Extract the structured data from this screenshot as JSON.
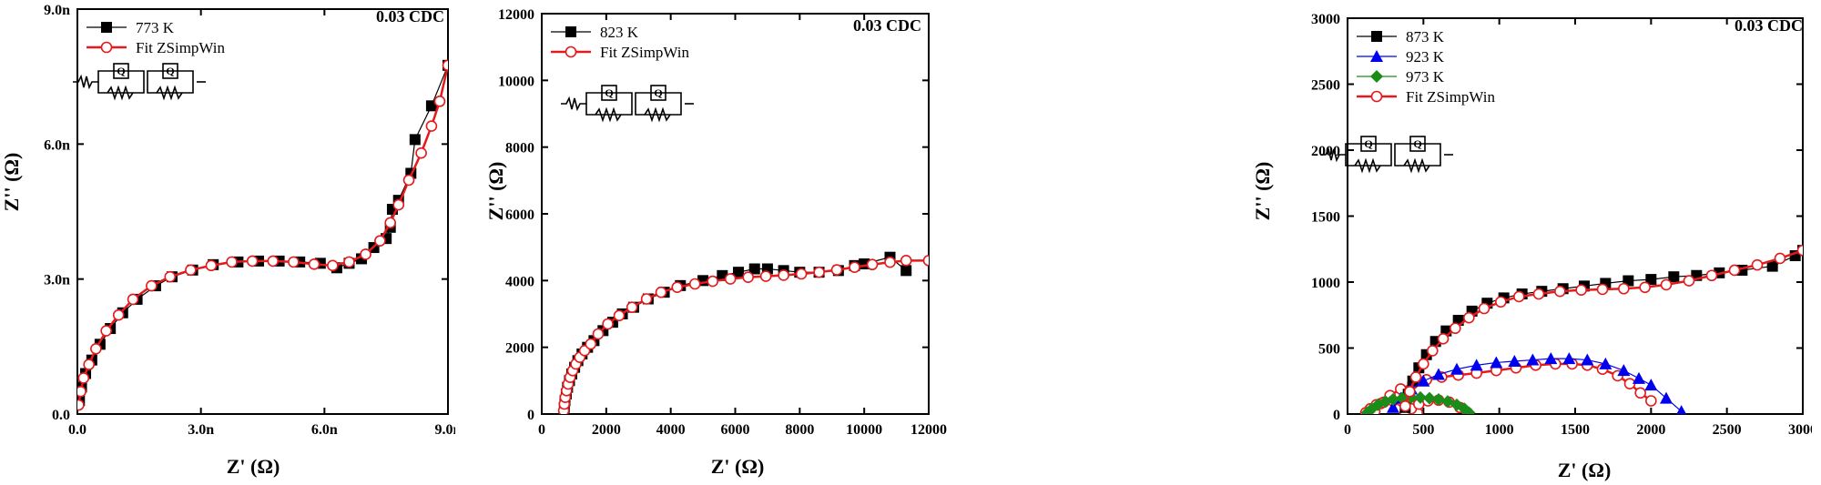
{
  "chart_data": [
    {
      "type": "scatter",
      "annotation": "0.03 CDC",
      "xlabel": "Z' (Ω)",
      "ylabel": "Z'' (Ω)",
      "xlim": [
        0,
        9
      ],
      "ylim": [
        0,
        9
      ],
      "xticks": [
        0,
        3,
        6,
        9
      ],
      "xtick_labels": [
        "0.0",
        "3.0n",
        "6.0n",
        "9.0n"
      ],
      "yticks": [
        0,
        3,
        6,
        9
      ],
      "ytick_labels": [
        "0.0",
        "3.0n",
        "6.0n",
        "9.0n"
      ],
      "legend_position": "top-left",
      "series": [
        {
          "name": "773 K",
          "marker": "square",
          "color": "#000000",
          "x": [
            0.05,
            0.1,
            0.2,
            0.35,
            0.55,
            0.8,
            1.1,
            1.45,
            1.9,
            2.3,
            2.8,
            3.3,
            3.9,
            4.4,
            4.9,
            5.4,
            5.9,
            6.3,
            6.6,
            6.9,
            7.2,
            7.5,
            7.6,
            7.65,
            7.8,
            8.1,
            8.2,
            8.6,
            9.0
          ],
          "y": [
            0.3,
            0.6,
            0.9,
            1.2,
            1.55,
            1.9,
            2.25,
            2.55,
            2.85,
            3.05,
            3.2,
            3.32,
            3.38,
            3.4,
            3.4,
            3.38,
            3.35,
            3.25,
            3.35,
            3.45,
            3.7,
            3.9,
            4.15,
            4.55,
            4.75,
            5.35,
            6.1,
            6.85,
            7.75
          ]
        },
        {
          "name": "Fit ZSimpWin",
          "marker": "circle-open",
          "color": "#e41a1c",
          "x": [
            0.03,
            0.08,
            0.15,
            0.28,
            0.45,
            0.7,
            1.0,
            1.35,
            1.8,
            2.25,
            2.75,
            3.25,
            3.75,
            4.25,
            4.75,
            5.25,
            5.75,
            6.2,
            6.6,
            7.0,
            7.35,
            7.6,
            7.8,
            8.05,
            8.35,
            8.6,
            8.8,
            9.0
          ],
          "y": [
            0.2,
            0.5,
            0.8,
            1.1,
            1.45,
            1.85,
            2.2,
            2.55,
            2.85,
            3.05,
            3.2,
            3.3,
            3.38,
            3.4,
            3.4,
            3.38,
            3.33,
            3.3,
            3.38,
            3.55,
            3.85,
            4.25,
            4.65,
            5.2,
            5.8,
            6.4,
            6.95,
            7.75
          ]
        }
      ]
    },
    {
      "type": "scatter",
      "annotation": "0.03 CDC",
      "xlabel": "Z' (Ω)",
      "ylabel": "Z'' (Ω)",
      "xlim": [
        0,
        12000
      ],
      "ylim": [
        0,
        12000
      ],
      "xticks": [
        0,
        2000,
        4000,
        6000,
        8000,
        10000,
        12000
      ],
      "xtick_labels": [
        "0",
        "2000",
        "4000",
        "6000",
        "8000",
        "10000",
        "12000"
      ],
      "yticks": [
        0,
        2000,
        4000,
        6000,
        8000,
        10000,
        12000
      ],
      "ytick_labels": [
        "0",
        "2000",
        "4000",
        "6000",
        "8000",
        "10000",
        "12000"
      ],
      "legend_position": "top-left",
      "series": [
        {
          "name": "823 K",
          "marker": "square",
          "color": "#000000",
          "x": [
            700,
            720,
            760,
            800,
            860,
            930,
            1020,
            1120,
            1250,
            1420,
            1620,
            1900,
            2200,
            2500,
            2850,
            3300,
            3800,
            4300,
            5000,
            5600,
            6100,
            6600,
            7000,
            7500,
            8000,
            8600,
            9200,
            9700,
            10000,
            10800,
            11300
          ],
          "y": [
            200,
            400,
            600,
            800,
            1000,
            1200,
            1400,
            1600,
            1800,
            2000,
            2200,
            2500,
            2750,
            3000,
            3200,
            3450,
            3650,
            3850,
            4000,
            4150,
            4250,
            4350,
            4350,
            4300,
            4250,
            4250,
            4300,
            4450,
            4500,
            4700,
            4300
          ]
        },
        {
          "name": "Fit ZSimpWin",
          "marker": "circle-open",
          "color": "#e41a1c",
          "x": [
            680,
            700,
            730,
            770,
            820,
            880,
            960,
            1060,
            1180,
            1330,
            1520,
            1750,
            2050,
            2400,
            2800,
            3250,
            3700,
            4200,
            4750,
            5300,
            5850,
            6400,
            6950,
            7500,
            8050,
            8600,
            9150,
            9700,
            10250,
            10800,
            11300,
            12000
          ],
          "y": [
            100,
            300,
            500,
            700,
            900,
            1100,
            1300,
            1500,
            1700,
            1900,
            2100,
            2400,
            2700,
            2950,
            3200,
            3450,
            3650,
            3800,
            3900,
            3980,
            4050,
            4100,
            4130,
            4160,
            4200,
            4250,
            4320,
            4400,
            4480,
            4550,
            4600,
            4600
          ]
        }
      ]
    },
    {
      "type": "scatter",
      "annotation": "0.03 CDC",
      "xlabel": "Z' (Ω)",
      "ylabel": "Z'' (Ω)",
      "xlim": [
        0,
        3000
      ],
      "ylim": [
        0,
        3000
      ],
      "xticks": [
        0,
        500,
        1000,
        1500,
        2000,
        2500,
        3000
      ],
      "xtick_labels": [
        "0",
        "500",
        "1000",
        "1500",
        "2000",
        "2500",
        "3000"
      ],
      "yticks": [
        0,
        500,
        1000,
        1500,
        2000,
        2500,
        3000
      ],
      "ytick_labels": [
        "0",
        "500",
        "1000",
        "1500",
        "2000",
        "2500",
        "3000"
      ],
      "legend_position": "top-left",
      "series": [
        {
          "name": "873 K",
          "marker": "square",
          "color": "#000000",
          "x": [
            380,
            400,
            430,
            470,
            520,
            580,
            650,
            730,
            820,
            920,
            1030,
            1150,
            1280,
            1420,
            1560,
            1700,
            1850,
            2000,
            2150,
            2300,
            2450,
            2600,
            2800,
            2950,
            3000
          ],
          "y": [
            50,
            150,
            250,
            350,
            450,
            550,
            630,
            710,
            780,
            840,
            880,
            910,
            930,
            950,
            970,
            990,
            1010,
            1020,
            1040,
            1050,
            1070,
            1090,
            1120,
            1200,
            1240
          ],
          "line_color": "#000000"
        },
        {
          "name": "923 K",
          "marker": "triangle",
          "color": "#0000ee",
          "x": [
            300,
            350,
            420,
            500,
            600,
            720,
            850,
            980,
            1100,
            1220,
            1340,
            1460,
            1580,
            1700,
            1820,
            1920,
            2000,
            2100,
            2200
          ],
          "y": [
            50,
            120,
            190,
            250,
            300,
            340,
            370,
            390,
            400,
            410,
            420,
            420,
            410,
            380,
            330,
            270,
            220,
            120,
            20
          ],
          "line_color": "#0000ee"
        },
        {
          "name": "973 K",
          "marker": "diamond",
          "color": "#1a8c1a",
          "x": [
            130,
            160,
            200,
            250,
            300,
            360,
            420,
            480,
            540,
            600,
            660,
            720,
            770,
            800
          ],
          "y": [
            10,
            40,
            70,
            95,
            110,
            120,
            125,
            125,
            120,
            110,
            95,
            70,
            40,
            10
          ],
          "line_color": "#1a8c1a"
        },
        {
          "name": "Fit ZSimpWin",
          "marker": "circle-open",
          "color": "#e41a1c",
          "x": [
            380,
            410,
            450,
            500,
            560,
            630,
            710,
            800,
            900,
            1010,
            1130,
            1260,
            1400,
            1540,
            1680,
            1820,
            1960,
            2100,
            2250,
            2400,
            2550,
            2700,
            2850,
            3000
          ],
          "y": [
            60,
            170,
            280,
            380,
            480,
            570,
            650,
            730,
            800,
            850,
            890,
            910,
            930,
            940,
            945,
            950,
            960,
            980,
            1010,
            1050,
            1090,
            1130,
            1180,
            1240
          ]
        }
      ],
      "extra_fits": [
        {
          "color": "#e41a1c",
          "x": [
            180,
            220,
            280,
            350,
            430,
            520,
            620,
            730,
            850,
            980,
            1110,
            1240,
            1370,
            1480,
            1580,
            1680,
            1780,
            1860,
            1930,
            2000
          ],
          "y": [
            20,
            80,
            140,
            190,
            230,
            260,
            280,
            295,
            310,
            330,
            350,
            370,
            380,
            380,
            370,
            340,
            290,
            230,
            160,
            100
          ]
        },
        {
          "color": "#e41a1c",
          "x": [
            120,
            150,
            190,
            240,
            300,
            360,
            420,
            460
          ],
          "y": [
            10,
            40,
            70,
            90,
            100,
            95,
            60,
            10
          ]
        },
        {
          "color": "#e41a1c",
          "x": [
            380,
            420,
            470,
            530,
            600,
            670,
            740,
            790
          ],
          "y": [
            10,
            40,
            75,
            100,
            105,
            90,
            50,
            10
          ]
        }
      ]
    }
  ]
}
